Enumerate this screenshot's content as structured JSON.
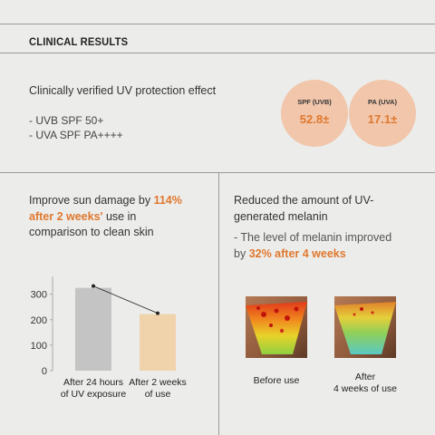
{
  "header": {
    "title": "CLINICAL RESULTS"
  },
  "uv": {
    "headline": "Clinically verified UV protection effect",
    "specs": [
      "- UVB SPF 50+",
      "- UVA SPF PA++++"
    ],
    "badges": [
      {
        "label": "SPF (UVB)",
        "value": "52.8±"
      },
      {
        "label": "PA (UVA)",
        "value": "17.1±"
      }
    ]
  },
  "sun_damage": {
    "line1_pre": "Improve sun damage by ",
    "line1_accent": "114%",
    "line2_accent": "after 2 weeks'",
    "line2_post": " use in",
    "line3": "comparison to clean skin"
  },
  "chart_data": {
    "type": "bar",
    "categories": [
      "After 24 hours of UV exposure",
      "After 2 weeks of use"
    ],
    "category_lines": [
      [
        "After 24 hours",
        "of UV exposure"
      ],
      [
        "After 2 weeks",
        "of use"
      ]
    ],
    "values": [
      325,
      222
    ],
    "bar_colors": [
      "#c4c4c4",
      "#f1d3ab"
    ],
    "yticks": [
      "0",
      "100",
      "200",
      "300"
    ],
    "ylim": [
      0,
      370
    ]
  },
  "melanin": {
    "title_lines": [
      "Reduced the amount of UV-",
      "generated melanin"
    ],
    "sub_line1": "- The level of melanin improved",
    "sub_prefix": "by ",
    "sub_accent": "32% after 4 weeks",
    "before_caption": "Before use",
    "after_caption_lines": [
      "After",
      "4 weeks of use"
    ]
  },
  "colors": {
    "accent": "#e0782e",
    "badge_bg": "#f1c6ab",
    "background": "#ececea"
  }
}
